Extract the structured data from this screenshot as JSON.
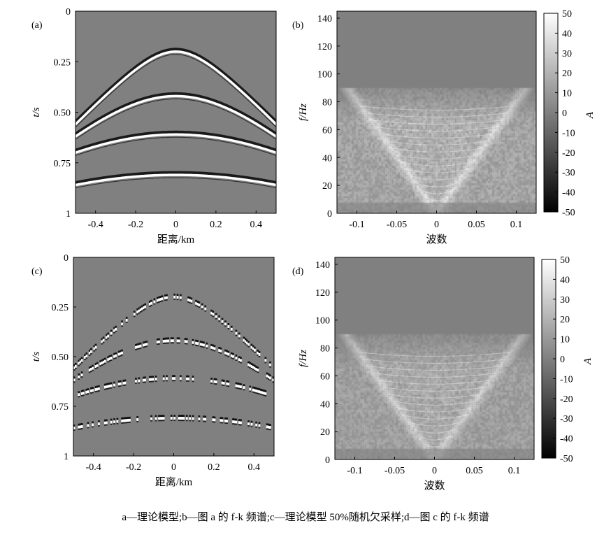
{
  "caption": "a—理论模型;b—图 a 的 f-k 频谱;c—理论模型 50%随机欠采样;d—图 c 的 f-k 频谱",
  "colors": {
    "panel_gray": "#808080",
    "text": "#000000"
  },
  "colorbar": {
    "label": "A",
    "ticks": [
      "50",
      "40",
      "30",
      "20",
      "10",
      "0",
      "-10",
      "-20",
      "-30",
      "-40",
      "-50"
    ],
    "range": [
      -50,
      50
    ]
  },
  "chart_data": [
    {
      "id": "a",
      "panel_label": "(a)",
      "type": "heatmap",
      "content": "seismic shot gather, 4 hyperbolic reflection events",
      "xlabel": "距离/km",
      "ylabel": "t/s",
      "xticks": [
        "-0.4",
        "-0.2",
        "0",
        "0.2",
        "0.4"
      ],
      "yticks": [
        "0",
        "0.25",
        "0.50",
        "0.75",
        "1"
      ],
      "xlim": [
        -0.5,
        0.5
      ],
      "ylim": [
        0,
        1
      ],
      "y_inverted": true,
      "events": [
        {
          "t0": 0.2,
          "t_edge": 0.56
        },
        {
          "t0": 0.42,
          "t_edge": 0.62
        },
        {
          "t0": 0.61,
          "t_edge": 0.7
        },
        {
          "t0": 0.81,
          "t_edge": 0.86
        }
      ],
      "sampling": "full"
    },
    {
      "id": "b",
      "panel_label": "(b)",
      "type": "heatmap",
      "content": "f-k spectrum of (a)",
      "xlabel": "波数",
      "ylabel": "f/Hz",
      "xticks": [
        "-0.1",
        "-0.05",
        "0",
        "0.05",
        "0.1"
      ],
      "yticks": [
        "0",
        "20",
        "40",
        "60",
        "80",
        "100",
        "120",
        "140"
      ],
      "xlim": [
        -0.125,
        0.125
      ],
      "ylim": [
        0,
        145
      ],
      "colorbar": true
    },
    {
      "id": "c",
      "panel_label": "(c)",
      "type": "heatmap",
      "content": "50% random undersampling of the theoretical model",
      "xlabel": "距离/km",
      "ylabel": "t/s",
      "xticks": [
        "-0.4",
        "-0.2",
        "0",
        "0.2",
        "0.4"
      ],
      "yticks": [
        "0",
        "0.25",
        "0.50",
        "0.75",
        "1"
      ],
      "xlim": [
        -0.5,
        0.5
      ],
      "ylim": [
        0,
        1
      ],
      "y_inverted": true,
      "events": [
        {
          "t0": 0.2,
          "t_edge": 0.56
        },
        {
          "t0": 0.42,
          "t_edge": 0.62
        },
        {
          "t0": 0.61,
          "t_edge": 0.7
        },
        {
          "t0": 0.81,
          "t_edge": 0.86
        }
      ],
      "sampling": "50% random"
    },
    {
      "id": "d",
      "panel_label": "(d)",
      "type": "heatmap",
      "content": "f-k spectrum of (c)",
      "xlabel": "波数",
      "ylabel": "f/Hz",
      "xticks": [
        "-0.1",
        "-0.05",
        "0",
        "0.05",
        "0.1"
      ],
      "yticks": [
        "0",
        "20",
        "40",
        "60",
        "80",
        "100",
        "120",
        "140"
      ],
      "xlim": [
        -0.125,
        0.125
      ],
      "ylim": [
        0,
        145
      ],
      "colorbar": true
    }
  ]
}
